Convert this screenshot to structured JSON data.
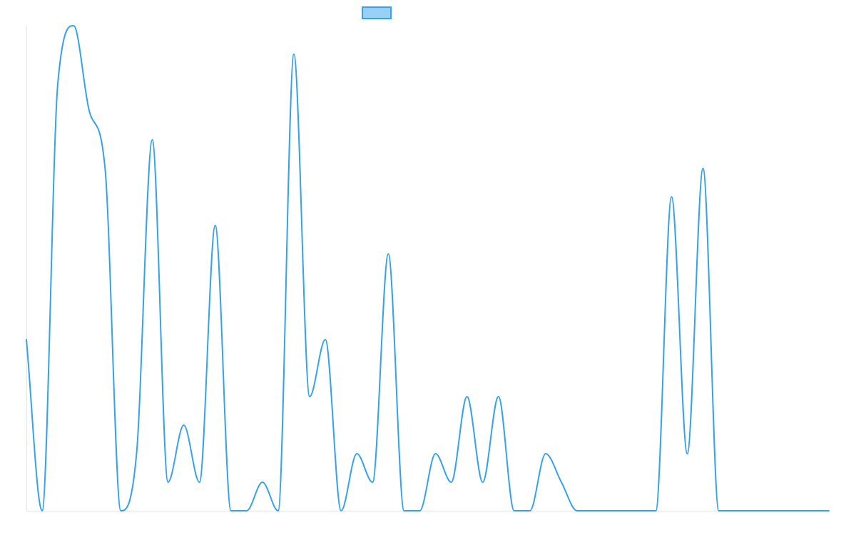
{
  "chart_data": {
    "type": "line",
    "title": "",
    "xlabel": "",
    "ylabel": "",
    "grid": false,
    "legend": "top-center",
    "ylim": [
      0,
      17
    ],
    "x": [
      0,
      1,
      2,
      3,
      4,
      5,
      6,
      7,
      8,
      9,
      10,
      11,
      12,
      13,
      14,
      15,
      16,
      17,
      18,
      19,
      20,
      21,
      22,
      23,
      24,
      25,
      26,
      27,
      28,
      29,
      30,
      31,
      32,
      33,
      34,
      35,
      36,
      37,
      38,
      39,
      40,
      41,
      42,
      43,
      44,
      45,
      46,
      47,
      48,
      49,
      50,
      51
    ],
    "series": [
      {
        "name": "",
        "color": "#36a2eb",
        "values": [
          6,
          0,
          15,
          17,
          14,
          12,
          0,
          2,
          13,
          1,
          3,
          1,
          10,
          0,
          0,
          1,
          0,
          16,
          4,
          6,
          0,
          2,
          1,
          9,
          0,
          0,
          2,
          1,
          4,
          1,
          4,
          0,
          0,
          2,
          1,
          0,
          0,
          0,
          0,
          0,
          0,
          11,
          2,
          12,
          0,
          0,
          0,
          0,
          0,
          0,
          0,
          0
        ]
      }
    ]
  }
}
